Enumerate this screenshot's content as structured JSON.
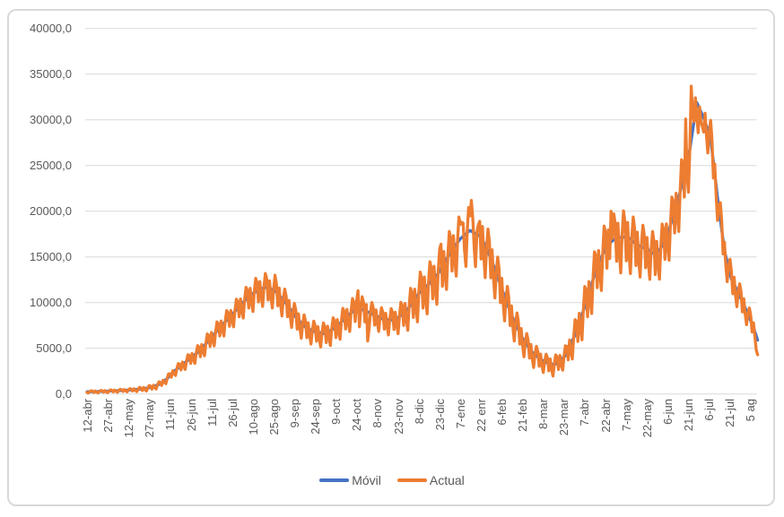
{
  "window": {
    "background": "#FFFFFF",
    "chart_border_color": "#D9D9D9"
  },
  "axes": {
    "y": {
      "labels": [
        "40000,0",
        "35000,0",
        "30000,0",
        "25000,0",
        "20000,0",
        "15000,0",
        "10000,0",
        "5000,0",
        "0,0"
      ],
      "min": 0,
      "max": 40000,
      "step": 5000,
      "number_format": "decimal-comma",
      "text_color": "#595959"
    },
    "x": {
      "rotation_deg": -90,
      "text_color": "#595959",
      "tick_interval_days": 15
    },
    "gridline_color": "#D9D9D9"
  },
  "legend": {
    "position": "bottom",
    "items": [
      {
        "label": "Móvil",
        "color": "#4472C4"
      },
      {
        "label": "Actual",
        "color": "#ED7D31"
      }
    ]
  },
  "chart_data": {
    "type": "line",
    "title": "",
    "grid": true,
    "legend_position": "bottom",
    "ylim": [
      0,
      40000
    ],
    "ytick_step": 5000,
    "y_tick_labels": [
      "40000,0",
      "35000,0",
      "30000,0",
      "25000,0",
      "20000,0",
      "15000,0",
      "10000,0",
      "5000,0",
      "0,0"
    ],
    "x_tick_labels": [
      "12-abr",
      "27-abr",
      "12-may",
      "27-may",
      "11-jun",
      "26-jun",
      "11-jul",
      "26-jul",
      "10-ago",
      "25-ago",
      "9-sep",
      "24-sep",
      "9-oct",
      "24-oct",
      "8-nov",
      "23-nov",
      "8-dic",
      "23-dic",
      "7-ene",
      "22 enr",
      "6-feb",
      "21-feb",
      "8-mar",
      "23-mar",
      "7-abr",
      "22-abr",
      "7-may",
      "22-may",
      "6-jun",
      "21-jun",
      "6-jul",
      "21-jul",
      "5 ag"
    ],
    "x_tick_interval_days": 15,
    "days_total": 485,
    "series": [
      {
        "name": "Móvil",
        "color": "#4472C4",
        "role": "7-day moving average (smooth)",
        "anchors_day_value": [
          [
            0,
            250
          ],
          [
            8,
            280
          ],
          [
            16,
            330
          ],
          [
            24,
            390
          ],
          [
            32,
            460
          ],
          [
            40,
            570
          ],
          [
            46,
            720
          ],
          [
            53,
            1100
          ],
          [
            58,
            1700
          ],
          [
            63,
            2500
          ],
          [
            68,
            3100
          ],
          [
            75,
            3950
          ],
          [
            82,
            4800
          ],
          [
            91,
            6400
          ],
          [
            98,
            7600
          ],
          [
            105,
            8700
          ],
          [
            112,
            9900
          ],
          [
            118,
            10800
          ],
          [
            125,
            11500
          ],
          [
            130,
            11700
          ],
          [
            136,
            11300
          ],
          [
            142,
            10300
          ],
          [
            147,
            9300
          ],
          [
            151,
            8400
          ],
          [
            158,
            7300
          ],
          [
            165,
            6800
          ],
          [
            172,
            6600
          ],
          [
            180,
            7300
          ],
          [
            188,
            8500
          ],
          [
            195,
            9400
          ],
          [
            200,
            9200
          ],
          [
            207,
            8700
          ],
          [
            214,
            8200
          ],
          [
            220,
            8100
          ],
          [
            225,
            8350
          ],
          [
            232,
            9300
          ],
          [
            240,
            11000
          ],
          [
            247,
            12000
          ],
          [
            254,
            13200
          ],
          [
            262,
            15300
          ],
          [
            270,
            17000
          ],
          [
            277,
            17900
          ],
          [
            285,
            17200
          ],
          [
            292,
            14900
          ],
          [
            300,
            11500
          ],
          [
            308,
            8300
          ],
          [
            316,
            5800
          ],
          [
            323,
            4400
          ],
          [
            331,
            3500
          ],
          [
            338,
            3200
          ],
          [
            346,
            4200
          ],
          [
            353,
            6500
          ],
          [
            361,
            10000
          ],
          [
            368,
            13600
          ],
          [
            376,
            16300
          ],
          [
            383,
            17100
          ],
          [
            391,
            17200
          ],
          [
            398,
            16300
          ],
          [
            406,
            15800
          ],
          [
            411,
            15200
          ],
          [
            416,
            16200
          ],
          [
            421,
            18000
          ],
          [
            428,
            21500
          ],
          [
            436,
            26800
          ],
          [
            441,
            31900
          ],
          [
            446,
            30200
          ],
          [
            451,
            28000
          ],
          [
            456,
            21500
          ],
          [
            461,
            15700
          ],
          [
            466,
            12600
          ],
          [
            471,
            11100
          ],
          [
            477,
            9100
          ],
          [
            482,
            7300
          ],
          [
            485,
            5900
          ]
        ]
      },
      {
        "name": "Actual",
        "color": "#ED7D31",
        "role": "daily values (jagged, weekly oscillation around Móvil)",
        "baseline_series": "Móvil",
        "weekly_pattern": [
          -0.6,
          -1.35,
          0.1,
          1.0,
          0.6,
          -0.9,
          0.55
        ],
        "amplitude_anchors_day_value": [
          [
            0,
            100
          ],
          [
            30,
            140
          ],
          [
            60,
            350
          ],
          [
            90,
            950
          ],
          [
            105,
            1100
          ],
          [
            120,
            1450
          ],
          [
            135,
            1500
          ],
          [
            150,
            1300
          ],
          [
            165,
            1100
          ],
          [
            180,
            1250
          ],
          [
            195,
            1500
          ],
          [
            210,
            1150
          ],
          [
            225,
            1300
          ],
          [
            240,
            2200
          ],
          [
            255,
            2400
          ],
          [
            270,
            2600
          ],
          [
            285,
            2700
          ],
          [
            300,
            2100
          ],
          [
            315,
            1300
          ],
          [
            331,
            900
          ],
          [
            345,
            1000
          ],
          [
            360,
            2200
          ],
          [
            375,
            2800
          ],
          [
            390,
            2900
          ],
          [
            405,
            2300
          ],
          [
            420,
            2450
          ],
          [
            435,
            3000
          ],
          [
            440,
            2800
          ],
          [
            444,
            1600
          ],
          [
            452,
            2000
          ],
          [
            460,
            1700
          ],
          [
            475,
            1200
          ],
          [
            485,
            800
          ]
        ],
        "spike_overrides_day_value": [
          [
            129,
            13200
          ],
          [
            136,
            13000
          ],
          [
            196,
            11300
          ],
          [
            203,
            5800
          ],
          [
            256,
            16400
          ],
          [
            271,
            18800
          ],
          [
            278,
            21200
          ],
          [
            283,
            18500
          ],
          [
            379,
            20000
          ],
          [
            433,
            30100
          ],
          [
            437,
            33700
          ],
          [
            439,
            29800
          ],
          [
            444,
            29800
          ],
          [
            445,
            29300
          ],
          [
            484,
            4800
          ],
          [
            485,
            4300
          ]
        ],
        "min_value": 60
      }
    ]
  }
}
